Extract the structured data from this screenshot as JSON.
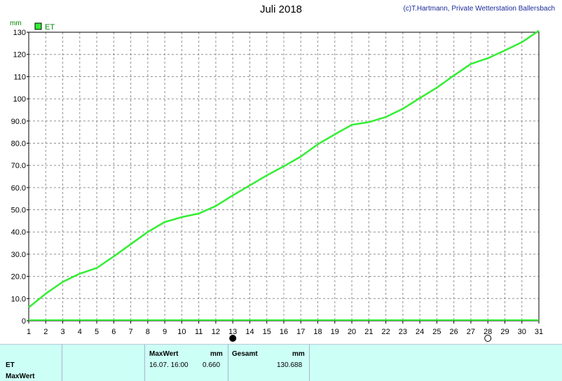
{
  "header": {
    "title": "Juli 2018",
    "copyright": "(c)T.Hartmann, Private Wetterstation Ballersbach"
  },
  "chart_data": {
    "type": "line",
    "ylabel": "mm",
    "xlabel": "",
    "ylim": [
      0,
      130
    ],
    "xlim": [
      1,
      31
    ],
    "y_ticks": [
      "0",
      "10.0",
      "20.0",
      "30.0",
      "40.0",
      "50.0",
      "60.0",
      "70.0",
      "80.0",
      "90.0",
      "100",
      "110",
      "120",
      "130"
    ],
    "y_tick_values": [
      0,
      10,
      20,
      30,
      40,
      50,
      60,
      70,
      80,
      90,
      100,
      110,
      120,
      130
    ],
    "x_ticks": [
      1,
      2,
      3,
      4,
      5,
      6,
      7,
      8,
      9,
      10,
      11,
      12,
      13,
      14,
      15,
      16,
      17,
      18,
      19,
      20,
      21,
      22,
      23,
      24,
      25,
      26,
      27,
      28,
      29,
      30,
      31
    ],
    "grid": true,
    "legend": "top-left",
    "moon_markers": [
      {
        "day": 13,
        "phase": "new-moon"
      },
      {
        "day": 28,
        "phase": "full-moon"
      }
    ],
    "series": [
      {
        "name": "ET",
        "color": "#33ee33",
        "x": [
          1,
          2,
          3,
          4,
          5,
          6,
          7,
          8,
          9,
          10,
          11,
          12,
          13,
          14,
          15,
          16,
          17,
          18,
          19,
          20,
          21,
          22,
          23,
          24,
          25,
          26,
          27,
          28,
          29,
          30,
          31
        ],
        "y": [
          6.0,
          12.2,
          17.5,
          21.2,
          23.8,
          29.0,
          34.5,
          40.0,
          44.5,
          46.7,
          48.3,
          51.7,
          56.5,
          61.0,
          65.5,
          69.6,
          74.0,
          79.5,
          84.0,
          88.3,
          89.5,
          91.8,
          95.5,
          100.3,
          105.0,
          110.5,
          115.7,
          118.3,
          121.8,
          125.5,
          130.7
        ]
      }
    ]
  },
  "info_panel": {
    "label_et": "ET",
    "label_maxwert": "MaxWert",
    "maxwert_header": "MaxWert",
    "maxwert_unit": "mm",
    "maxwert_date": "16.07. 16:00",
    "maxwert_value": "0.660",
    "gesamt_header": "Gesamt",
    "gesamt_unit": "mm",
    "gesamt_value": "130.688"
  }
}
